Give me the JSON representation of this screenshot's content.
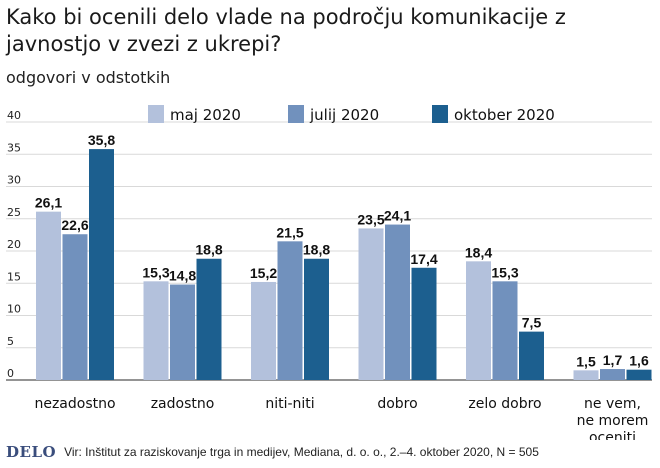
{
  "header": {
    "title": "Kako bi ocenili delo vlade na področju komunikacije z javnostjo v zvezi z ukrepi?",
    "subtitle": "odgovori v odstotkih"
  },
  "footer": {
    "logo": "DELO",
    "source": "Vir: Inštitut za raziskovanje trga in medijev, Mediana, d. o. o., 2.–4. oktober 2020, N = 505"
  },
  "chart_data": {
    "type": "bar",
    "categories": [
      [
        "nezadostno"
      ],
      [
        "zadostno"
      ],
      [
        "niti-niti"
      ],
      [
        "dobro"
      ],
      [
        "zelo dobro"
      ],
      [
        "ne vem,",
        "ne morem",
        "oceniti"
      ]
    ],
    "series": [
      {
        "name": "maj 2020",
        "color": "#b3c1dc",
        "values": [
          26.1,
          15.3,
          15.2,
          23.5,
          18.4,
          1.5
        ],
        "labels": [
          "26,1",
          "15,3",
          "15,2",
          "23,5",
          "18,4",
          "1,5"
        ]
      },
      {
        "name": "julij 2020",
        "color": "#7191bd",
        "values": [
          22.6,
          14.8,
          21.5,
          24.1,
          15.3,
          1.7
        ],
        "labels": [
          "22,6",
          "14,8",
          "21,5",
          "24,1",
          "15,3",
          "1,7"
        ]
      },
      {
        "name": "oktober 2020",
        "color": "#1c5f8f",
        "values": [
          35.8,
          18.8,
          18.8,
          17.4,
          7.5,
          1.6
        ],
        "labels": [
          "35,8",
          "18,8",
          "18,8",
          "17,4",
          "7,5",
          "1,6"
        ]
      }
    ],
    "ylim": [
      0,
      40
    ],
    "yticks": [
      0,
      5,
      10,
      15,
      20,
      25,
      30,
      35,
      40
    ],
    "grid": true,
    "legend_position": "top"
  }
}
